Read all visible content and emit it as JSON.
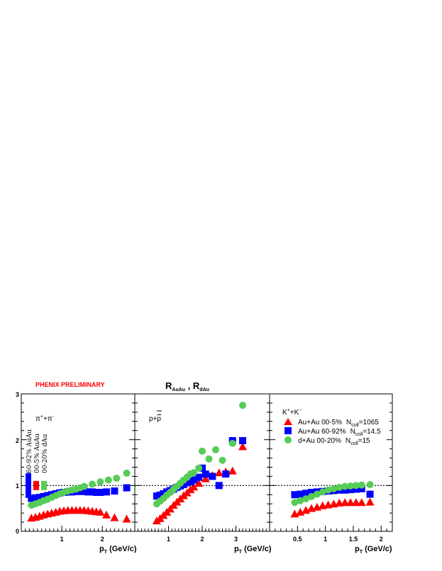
{
  "header": {
    "preliminary": "PHENIX PRELIMINARY",
    "title_main_1": "R",
    "title_sub_1": "AuAu",
    "title_sep": " , ",
    "title_main_2": "R",
    "title_sub_2": "dAu"
  },
  "axes": {
    "y_ticks": [
      "0",
      "1",
      "2",
      "3"
    ],
    "x_title_main": "p",
    "x_title_sub": "T",
    "x_title_unit": " (GeV/c)"
  },
  "colors": {
    "auau_central": "#ff0000",
    "auau_peripheral": "#0000ff",
    "dau": "#55cc55"
  },
  "legend": {
    "title": "K",
    "title_sup1": "+",
    "title_mid": "+K",
    "title_sup2": "−",
    "entries": [
      {
        "label": "Au+Au 00-5%",
        "ncoll_label": "N",
        "ncoll_sub": "coll",
        "ncoll_value": "=1065",
        "marker": "triangle",
        "color": "#ff0000"
      },
      {
        "label": "Au+Au 60-92%",
        "ncoll_label": "N",
        "ncoll_sub": "coll",
        "ncoll_value": "=14.5",
        "marker": "square",
        "color": "#0000ff"
      },
      {
        "label": "d+Au 00-20%",
        "ncoll_label": "N",
        "ncoll_sub": "coll",
        "ncoll_value": "=15",
        "marker": "circle",
        "color": "#55cc55"
      }
    ]
  },
  "sys_labels": [
    "60-92% AuAu",
    "00-5% AuAu",
    "00-20% dAu"
  ],
  "chart_data": [
    {
      "type": "scatter",
      "panel": "pions",
      "label_main": "π",
      "label_sup1": "+",
      "label_mid": "+π",
      "label_sup2": "-",
      "xlim": [
        0,
        2.8
      ],
      "ylim": [
        0,
        3
      ],
      "x_tick_labels": [
        "1",
        "2"
      ],
      "reference_line": 1,
      "norm_boxes": [
        {
          "series": "Au+Au 60-92%",
          "center": 1.0,
          "half_height": 0.27
        },
        {
          "series": "Au+Au 00-5%",
          "center": 1.0,
          "half_height": 0.1
        },
        {
          "series": "d+Au 00-20%",
          "center": 1.0,
          "half_height": 0.1
        }
      ],
      "series": [
        {
          "name": "Au+Au 00-5%",
          "marker": "triangle",
          "x": [
            0.25,
            0.35,
            0.45,
            0.55,
            0.65,
            0.75,
            0.85,
            0.95,
            1.05,
            1.15,
            1.25,
            1.35,
            1.45,
            1.55,
            1.65,
            1.75,
            1.85,
            1.95,
            2.1,
            2.3,
            2.6
          ],
          "y": [
            0.29,
            0.31,
            0.33,
            0.36,
            0.38,
            0.4,
            0.42,
            0.44,
            0.45,
            0.46,
            0.46,
            0.46,
            0.46,
            0.46,
            0.45,
            0.44,
            0.43,
            0.42,
            0.36,
            0.3,
            0.27
          ]
        },
        {
          "name": "Au+Au 60-92%",
          "marker": "square",
          "x": [
            0.25,
            0.35,
            0.45,
            0.55,
            0.65,
            0.75,
            0.85,
            0.95,
            1.05,
            1.15,
            1.25,
            1.35,
            1.45,
            1.55,
            1.65,
            1.75,
            1.85,
            1.95,
            2.1,
            2.3,
            2.6
          ],
          "y": [
            0.72,
            0.73,
            0.74,
            0.76,
            0.78,
            0.8,
            0.82,
            0.84,
            0.85,
            0.86,
            0.86,
            0.87,
            0.87,
            0.87,
            0.86,
            0.86,
            0.85,
            0.85,
            0.86,
            0.88,
            0.95
          ]
        },
        {
          "name": "d+Au 00-20%",
          "marker": "circle",
          "x": [
            0.25,
            0.35,
            0.45,
            0.55,
            0.65,
            0.75,
            0.85,
            0.95,
            1.05,
            1.15,
            1.25,
            1.35,
            1.45,
            1.55,
            1.75,
            1.95,
            2.15,
            2.35,
            2.6
          ],
          "y": [
            0.57,
            0.6,
            0.63,
            0.67,
            0.7,
            0.74,
            0.78,
            0.82,
            0.85,
            0.88,
            0.9,
            0.92,
            0.95,
            0.98,
            1.03,
            1.08,
            1.12,
            1.16,
            1.27
          ]
        }
      ]
    },
    {
      "type": "scatter",
      "panel": "protons",
      "label_main": "p+",
      "label_bar": "p",
      "xlim": [
        0,
        4.0
      ],
      "ylim": [
        0,
        3
      ],
      "x_tick_labels": [
        "1",
        "2",
        "3"
      ],
      "reference_line": 1,
      "series": [
        {
          "name": "Au+Au 00-5%",
          "marker": "triangle",
          "x": [
            0.65,
            0.75,
            0.85,
            0.95,
            1.05,
            1.15,
            1.25,
            1.35,
            1.45,
            1.55,
            1.65,
            1.75,
            1.9,
            2.1,
            2.3,
            2.5,
            2.7,
            2.9,
            3.2
          ],
          "y": [
            0.23,
            0.28,
            0.35,
            0.42,
            0.49,
            0.57,
            0.64,
            0.71,
            0.78,
            0.84,
            0.91,
            0.97,
            1.05,
            1.15,
            1.22,
            1.28,
            1.3,
            1.32,
            1.85
          ]
        },
        {
          "name": "Au+Au 60-92%",
          "marker": "square",
          "x": [
            0.65,
            0.75,
            0.85,
            0.95,
            1.05,
            1.15,
            1.25,
            1.35,
            1.45,
            1.55,
            1.65,
            1.75,
            1.9,
            2.0,
            2.1,
            2.3,
            2.5,
            2.7,
            2.9,
            3.2
          ],
          "y": [
            0.77,
            0.79,
            0.82,
            0.86,
            0.89,
            0.92,
            0.96,
            0.99,
            1.02,
            1.06,
            1.08,
            1.12,
            1.18,
            1.38,
            1.25,
            1.2,
            1.0,
            1.25,
            1.98,
            1.98
          ]
        },
        {
          "name": "d+Au 00-20%",
          "marker": "circle",
          "x": [
            0.65,
            0.75,
            0.85,
            0.95,
            1.05,
            1.15,
            1.25,
            1.35,
            1.45,
            1.55,
            1.65,
            1.75,
            1.9,
            2.0,
            2.2,
            2.4,
            2.6,
            2.9,
            3.2
          ],
          "y": [
            0.6,
            0.66,
            0.72,
            0.79,
            0.85,
            0.92,
            0.98,
            1.05,
            1.12,
            1.18,
            1.25,
            1.28,
            1.38,
            1.75,
            1.58,
            1.78,
            1.55,
            1.92,
            2.75
          ]
        }
      ]
    },
    {
      "type": "scatter",
      "panel": "kaons",
      "xlim": [
        0,
        2.2
      ],
      "ylim": [
        0,
        3
      ],
      "x_tick_labels": [
        "0.5",
        "1",
        "1.5",
        "2"
      ],
      "reference_line": 1,
      "series": [
        {
          "name": "Au+Au 00-5%",
          "marker": "triangle",
          "x": [
            0.45,
            0.55,
            0.65,
            0.75,
            0.85,
            0.95,
            1.05,
            1.15,
            1.25,
            1.35,
            1.45,
            1.55,
            1.65,
            1.8
          ],
          "y": [
            0.38,
            0.42,
            0.46,
            0.5,
            0.53,
            0.56,
            0.58,
            0.6,
            0.62,
            0.63,
            0.63,
            0.63,
            0.63,
            0.64
          ]
        },
        {
          "name": "Au+Au 60-92%",
          "marker": "square",
          "x": [
            0.45,
            0.55,
            0.65,
            0.75,
            0.85,
            0.95,
            1.05,
            1.15,
            1.25,
            1.35,
            1.45,
            1.55,
            1.65,
            1.8
          ],
          "y": [
            0.8,
            0.81,
            0.83,
            0.85,
            0.86,
            0.87,
            0.88,
            0.89,
            0.9,
            0.9,
            0.91,
            0.92,
            0.93,
            0.81
          ]
        },
        {
          "name": "d+Au 00-20%",
          "marker": "circle",
          "x": [
            0.45,
            0.55,
            0.65,
            0.75,
            0.85,
            0.95,
            1.05,
            1.15,
            1.25,
            1.35,
            1.45,
            1.55,
            1.65,
            1.8
          ],
          "y": [
            0.63,
            0.67,
            0.71,
            0.76,
            0.81,
            0.86,
            0.9,
            0.93,
            0.96,
            0.98,
            0.99,
            1.0,
            1.01,
            1.02
          ]
        }
      ]
    }
  ]
}
